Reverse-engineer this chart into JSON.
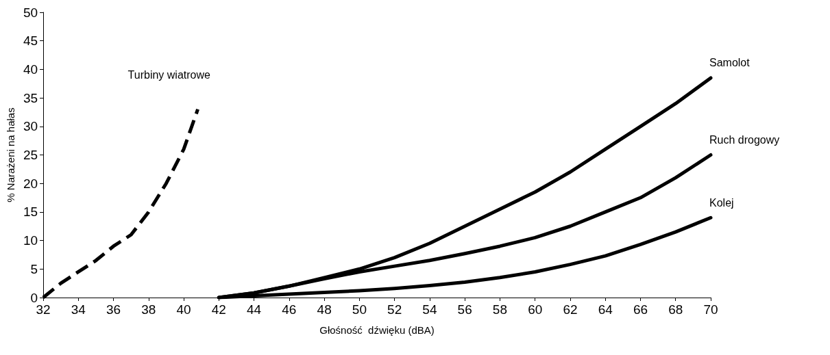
{
  "chart_data": {
    "type": "line",
    "xlabel": "Głośność  dźwięku (dBA)",
    "ylabel": "% Narażeni na hałas",
    "xlim": [
      32,
      70
    ],
    "xticks": [
      32,
      34,
      36,
      38,
      40,
      42,
      44,
      46,
      48,
      50,
      52,
      54,
      56,
      58,
      60,
      62,
      64,
      66,
      68,
      70
    ],
    "ylim": [
      0,
      50
    ],
    "yticks": [
      0,
      5,
      10,
      15,
      20,
      25,
      30,
      35,
      40,
      45,
      50
    ],
    "grid": false,
    "legend": false,
    "marker": "none",
    "series": [
      {
        "name": "Turbiny wiatrowe",
        "color": "#000000",
        "line_style": "dashed",
        "x": [
          32,
          33,
          34,
          35,
          36,
          37,
          38,
          39,
          40,
          40.8
        ],
        "values": [
          0,
          2.5,
          4.5,
          6.5,
          9,
          11,
          15,
          20,
          26,
          33
        ]
      },
      {
        "name": "Samolot",
        "color": "#000000",
        "line_style": "solid",
        "x": [
          42,
          44,
          46,
          48,
          50,
          52,
          54,
          56,
          58,
          60,
          62,
          64,
          66,
          68,
          70
        ],
        "values": [
          0,
          0.8,
          2,
          3.5,
          5,
          7,
          9.5,
          12.5,
          15.5,
          18.5,
          22,
          26,
          30,
          34,
          38.5
        ]
      },
      {
        "name": "Ruch drogowy",
        "color": "#000000",
        "line_style": "solid",
        "x": [
          42,
          44,
          46,
          48,
          50,
          52,
          54,
          56,
          58,
          60,
          62,
          64,
          66,
          68,
          70
        ],
        "values": [
          0,
          0.8,
          2,
          3.3,
          4.5,
          5.5,
          6.5,
          7.7,
          9,
          10.5,
          12.5,
          15,
          17.5,
          21,
          25
        ]
      },
      {
        "name": "Kolej",
        "color": "#000000",
        "line_style": "solid",
        "x": [
          42,
          44,
          46,
          48,
          50,
          52,
          54,
          56,
          58,
          60,
          62,
          64,
          66,
          68,
          70
        ],
        "values": [
          0,
          0.3,
          0.6,
          0.9,
          1.2,
          1.6,
          2.1,
          2.7,
          3.5,
          4.5,
          5.8,
          7.3,
          9.3,
          11.5,
          14
        ]
      }
    ]
  }
}
